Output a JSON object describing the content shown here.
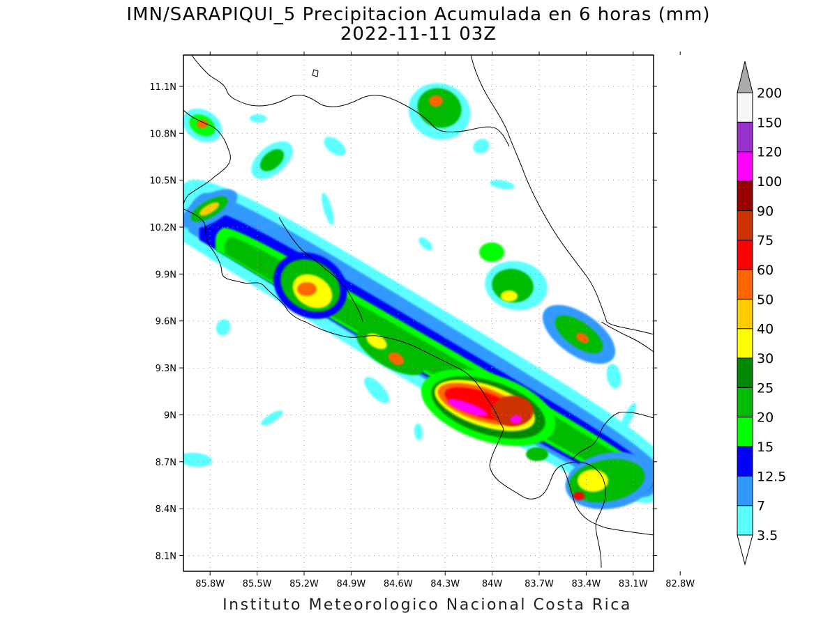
{
  "title": "IMN/SARAPIQUI_5 Precipitacion Acumulada en 6 horas (mm)",
  "subtitle": "2022-11-11 03Z",
  "footer": "Instituto Meteorologico Nacional Costa Rica",
  "map": {
    "lon_labels": [
      "85.8W",
      "85.5W",
      "85.2W",
      "84.9W",
      "84.6W",
      "84.3W",
      "84W",
      "83.7W",
      "83.4W",
      "83.1W",
      "82.8W"
    ],
    "lon_values": [
      -85.8,
      -85.5,
      -85.2,
      -84.9,
      -84.6,
      -84.3,
      -84.0,
      -83.7,
      -83.4,
      -83.1,
      -82.8
    ],
    "lat_labels": [
      "11.1N",
      "10.8N",
      "10.5N",
      "10.2N",
      "9.9N",
      "9.6N",
      "9.3N",
      "9N",
      "8.7N",
      "8.4N",
      "8.1N"
    ],
    "lat_values": [
      11.1,
      10.8,
      10.5,
      10.2,
      9.9,
      9.6,
      9.3,
      9.0,
      8.7,
      8.4,
      8.1
    ],
    "lon_range": [
      -85.97,
      -82.97
    ],
    "lat_range": [
      8.0,
      11.3
    ],
    "grid": true
  },
  "colorbar": {
    "labels": [
      "200",
      "150",
      "120",
      "100",
      "90",
      "75",
      "60",
      "50",
      "40",
      "30",
      "25",
      "20",
      "15",
      "12.5",
      "7",
      "3.5"
    ],
    "colors": [
      "#ffffff",
      "#5bffff",
      "#3399ff",
      "#0000ff",
      "#00ff00",
      "#00bb00",
      "#008800",
      "#ffff00",
      "#ffcc00",
      "#ff6600",
      "#ff0000",
      "#cc3300",
      "#990000",
      "#ff00ff",
      "#9933cc",
      "#f5f5f5",
      "#aaaaaa"
    ]
  }
}
